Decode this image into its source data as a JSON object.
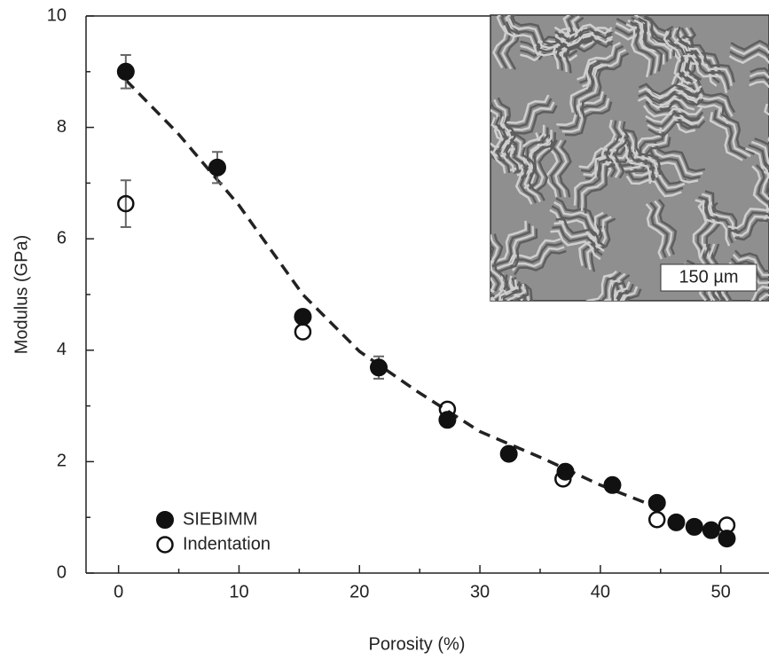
{
  "chart_data": {
    "type": "scatter",
    "xlabel": "Porosity (%)",
    "ylabel": "Modulus (GPa)",
    "xlim": [
      -2.7,
      54
    ],
    "ylim": [
      0,
      10
    ],
    "xticks": [
      0,
      10,
      20,
      30,
      40,
      50
    ],
    "yticks": [
      0,
      2,
      4,
      6,
      8,
      10
    ],
    "xminorticks": [
      5,
      15,
      25,
      35,
      45
    ],
    "yminorticks": [
      1,
      3,
      5,
      7,
      9
    ],
    "legend": "lower left",
    "series": [
      {
        "name": "SIEBIMM",
        "color": "#111111",
        "marker": "filled",
        "x": [
          0.6,
          8.2,
          15.3,
          21.6,
          27.3,
          32.4,
          37.1,
          41.0,
          44.7,
          46.3,
          47.8,
          49.2,
          50.5
        ],
        "values": [
          9.0,
          7.28,
          4.6,
          3.69,
          2.75,
          2.14,
          1.82,
          1.58,
          1.26,
          0.91,
          0.83,
          0.77,
          0.62
        ],
        "errors": [
          0.3,
          0.28,
          null,
          0.2,
          null,
          null,
          null,
          null,
          null,
          null,
          null,
          null,
          null
        ]
      },
      {
        "name": "Indentation",
        "color": "#111111",
        "marker": "open",
        "x": [
          0.6,
          15.3,
          27.3,
          36.9,
          44.7,
          50.5
        ],
        "values": [
          6.63,
          4.33,
          2.94,
          1.69,
          0.96,
          0.86
        ],
        "errors": [
          0.42,
          null,
          null,
          null,
          null,
          null
        ]
      }
    ],
    "fit": {
      "color": "#222222",
      "x": [
        0.6,
        4.9,
        10,
        15.3,
        20,
        24.8,
        30,
        35.2,
        40,
        44.7
      ],
      "values": [
        8.85,
        7.9,
        6.6,
        5.0,
        3.98,
        3.26,
        2.54,
        2.06,
        1.58,
        1.18
      ]
    },
    "inset_label": "150 µm"
  }
}
